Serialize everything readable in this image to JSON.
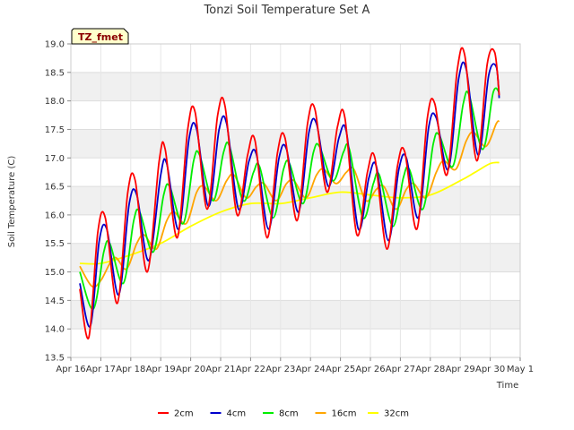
{
  "chart_data": {
    "type": "line",
    "title": "Tonzi Soil Temperature Set A",
    "xlabel": "Time",
    "ylabel": "Soil Temperature (C)",
    "annotation": "TZ_fmet",
    "ylim": [
      13.5,
      19.0
    ],
    "xlim": [
      0,
      15
    ],
    "yticks": [
      13.5,
      14.0,
      14.5,
      15.0,
      15.5,
      16.0,
      16.5,
      17.0,
      17.5,
      18.0,
      18.5,
      19.0
    ],
    "xtick_labels": [
      "Apr 16",
      "Apr 17",
      "Apr 18",
      "Apr 19",
      "Apr 20",
      "Apr 21",
      "Apr 22",
      "Apr 23",
      "Apr 24",
      "Apr 25",
      "Apr 26",
      "Apr 27",
      "Apr 28",
      "Apr 29",
      "Apr 30",
      "May 1"
    ],
    "grid": true,
    "legend_position": "bottom",
    "series": [
      {
        "name": "2cm",
        "color": "#ff0000",
        "x": [
          0.3,
          0.6,
          0.9,
          1.15,
          1.55,
          1.9,
          2.15,
          2.55,
          2.95,
          3.15,
          3.55,
          3.9,
          4.15,
          4.55,
          4.9,
          5.15,
          5.55,
          5.9,
          6.15,
          6.55,
          6.9,
          7.15,
          7.55,
          7.9,
          8.15,
          8.55,
          8.9,
          9.15,
          9.55,
          9.9,
          10.15,
          10.55,
          10.9,
          11.15,
          11.55,
          11.9,
          12.15,
          12.55,
          12.9,
          13.15,
          13.55,
          13.9,
          14.15,
          14.3
        ],
        "values": [
          14.7,
          13.85,
          15.7,
          15.95,
          14.45,
          16.4,
          16.6,
          15.0,
          16.95,
          17.15,
          15.6,
          17.5,
          17.8,
          16.1,
          17.75,
          17.9,
          16.0,
          17.05,
          17.3,
          15.6,
          17.1,
          17.35,
          15.9,
          17.6,
          17.85,
          16.4,
          17.55,
          17.7,
          15.65,
          16.75,
          17.0,
          15.4,
          16.85,
          17.1,
          15.75,
          17.7,
          17.95,
          16.7,
          18.55,
          18.8,
          16.95,
          18.65,
          18.85,
          18.1
        ]
      },
      {
        "name": "4cm",
        "color": "#0000cc",
        "x": [
          0.3,
          0.65,
          0.95,
          1.2,
          1.6,
          1.95,
          2.2,
          2.6,
          3.0,
          3.2,
          3.6,
          3.95,
          4.2,
          4.6,
          4.95,
          5.2,
          5.6,
          5.95,
          6.2,
          6.6,
          6.95,
          7.2,
          7.6,
          7.95,
          8.2,
          8.6,
          8.95,
          9.2,
          9.6,
          9.95,
          10.2,
          10.6,
          10.95,
          11.2,
          11.6,
          11.95,
          12.2,
          12.6,
          12.95,
          13.2,
          13.6,
          13.95,
          14.2,
          14.3
        ],
        "values": [
          14.8,
          14.05,
          15.55,
          15.75,
          14.6,
          16.2,
          16.35,
          15.2,
          16.7,
          16.9,
          15.75,
          17.35,
          17.5,
          16.15,
          17.5,
          17.6,
          16.1,
          16.95,
          17.05,
          15.75,
          17.0,
          17.15,
          16.05,
          17.45,
          17.6,
          16.5,
          17.35,
          17.45,
          15.75,
          16.65,
          16.85,
          15.55,
          16.8,
          17.0,
          15.95,
          17.55,
          17.7,
          16.8,
          18.4,
          18.55,
          17.05,
          18.45,
          18.6,
          18.05
        ]
      },
      {
        "name": "8cm",
        "color": "#00ee00",
        "x": [
          0.3,
          0.75,
          1.1,
          1.3,
          1.75,
          2.1,
          2.3,
          2.75,
          3.1,
          3.3,
          3.75,
          4.1,
          4.3,
          4.75,
          5.1,
          5.3,
          5.75,
          6.1,
          6.3,
          6.75,
          7.1,
          7.3,
          7.75,
          8.1,
          8.3,
          8.75,
          9.1,
          9.3,
          9.75,
          10.1,
          10.3,
          10.75,
          11.1,
          11.3,
          11.75,
          12.1,
          12.3,
          12.75,
          13.1,
          13.3,
          13.75,
          14.1,
          14.3
        ],
        "values": [
          15.0,
          14.35,
          15.35,
          15.5,
          14.8,
          15.9,
          16.05,
          15.35,
          16.35,
          16.5,
          15.85,
          16.95,
          17.05,
          16.25,
          17.1,
          17.2,
          16.25,
          16.75,
          16.85,
          15.95,
          16.8,
          16.9,
          16.2,
          17.1,
          17.2,
          16.6,
          17.1,
          17.15,
          15.95,
          16.55,
          16.7,
          15.8,
          16.65,
          16.8,
          16.1,
          17.25,
          17.4,
          16.85,
          17.95,
          18.1,
          17.15,
          18.15,
          18.15
        ]
      },
      {
        "name": "16cm",
        "color": "#ffa500",
        "x": [
          0.3,
          0.7,
          1.0,
          1.45,
          1.85,
          2.2,
          2.45,
          2.85,
          3.2,
          3.45,
          3.85,
          4.2,
          4.45,
          4.85,
          5.2,
          5.45,
          5.85,
          6.2,
          6.45,
          6.85,
          7.2,
          7.45,
          7.85,
          8.2,
          8.45,
          8.85,
          9.2,
          9.45,
          9.85,
          10.2,
          10.45,
          10.85,
          11.2,
          11.45,
          11.85,
          12.2,
          12.45,
          12.85,
          13.2,
          13.45,
          13.85,
          14.2,
          14.3
        ],
        "values": [
          15.1,
          14.75,
          14.85,
          15.25,
          15.05,
          15.5,
          15.65,
          15.4,
          15.9,
          16.05,
          15.85,
          16.4,
          16.5,
          16.25,
          16.6,
          16.7,
          16.3,
          16.5,
          16.55,
          16.25,
          16.55,
          16.6,
          16.3,
          16.7,
          16.8,
          16.55,
          16.75,
          16.8,
          16.25,
          16.45,
          16.5,
          16.1,
          16.45,
          16.55,
          16.3,
          16.75,
          16.95,
          16.8,
          17.3,
          17.45,
          17.2,
          17.6,
          17.65
        ]
      },
      {
        "name": "32cm",
        "color": "#ffff00",
        "x": [
          0.3,
          1.0,
          2.0,
          3.0,
          4.0,
          5.0,
          6.0,
          7.0,
          8.0,
          9.0,
          10.0,
          11.0,
          12.0,
          13.0,
          13.5,
          14.0,
          14.3
        ],
        "values": [
          15.15,
          15.15,
          15.3,
          15.5,
          15.8,
          16.05,
          16.2,
          16.2,
          16.3,
          16.4,
          16.35,
          16.3,
          16.35,
          16.6,
          16.75,
          16.9,
          16.92
        ]
      }
    ]
  }
}
